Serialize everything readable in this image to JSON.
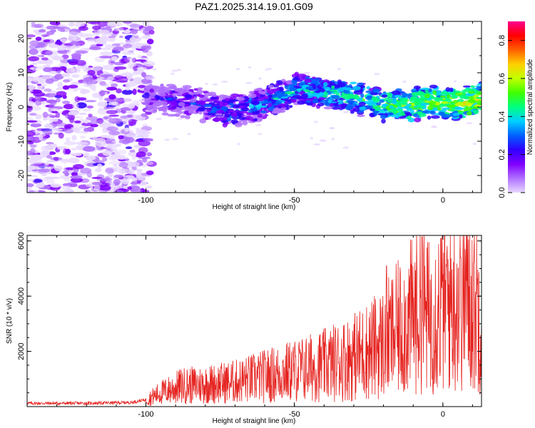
{
  "chart_data": [
    {
      "type": "heatmap",
      "title": "PAZ1.2025.314.19.01.G09",
      "xlabel": "Height of straight line (km)",
      "ylabel": "Frequency (Hz)",
      "xlim": [
        -140,
        13
      ],
      "ylim": [
        -25,
        25
      ],
      "xticks": [
        -100,
        -50,
        0
      ],
      "yticks": [
        -20,
        -10,
        0,
        10,
        20
      ],
      "colorbar": {
        "label": "Normalized spectral amplitude",
        "range": [
          0.0,
          0.9
        ],
        "ticks": [
          0.0,
          0.2,
          0.4,
          0.6,
          0.8
        ],
        "colors": [
          "#e8d8ff",
          "#b070ff",
          "#8000ff",
          "#3000ff",
          "#0060ff",
          "#00d0ff",
          "#00ff80",
          "#40ff00",
          "#c0ff00",
          "#ffd000",
          "#ff6000",
          "#ff0000",
          "#ff0090"
        ]
      },
      "ridge": [
        {
          "x": -100,
          "y": 2.5
        },
        {
          "x": -90,
          "y": 2.0
        },
        {
          "x": -80,
          "y": 0.5
        },
        {
          "x": -72,
          "y": -1.5
        },
        {
          "x": -65,
          "y": 0.0
        },
        {
          "x": -55,
          "y": 3.0
        },
        {
          "x": -48,
          "y": 5.5
        },
        {
          "x": -40,
          "y": 4.5
        },
        {
          "x": -30,
          "y": 3.0
        },
        {
          "x": -20,
          "y": 0.5
        },
        {
          "x": -12,
          "y": 0.5
        },
        {
          "x": -5,
          "y": 1.5
        },
        {
          "x": 5,
          "y": 1.0
        },
        {
          "x": 13,
          "y": 2.5
        }
      ]
    },
    {
      "type": "line",
      "xlabel": "Height of straight line (km)",
      "ylabel": "SNR (10 * v/v)",
      "xlim": [
        -140,
        13
      ],
      "ylim": [
        0,
        6200
      ],
      "xticks": [
        -100,
        -50,
        0
      ],
      "yticks": [
        2000,
        4000,
        6000
      ],
      "series": [
        {
          "name": "SNR",
          "color": "#e52420",
          "x": [
            -140,
            -120,
            -105,
            -100,
            -95,
            -88,
            -80,
            -70,
            -60,
            -50,
            -40,
            -30,
            -20,
            -15,
            -10,
            -7,
            -5,
            0,
            5,
            8,
            10,
            13
          ],
          "y": [
            120,
            120,
            150,
            250,
            500,
            750,
            800,
            900,
            1100,
            1300,
            1500,
            1800,
            2300,
            2800,
            3300,
            3600,
            3200,
            3800,
            4000,
            4200,
            3800,
            3600
          ],
          "peaks": [
            {
              "x": -7,
              "y": 6150
            },
            {
              "x": -19,
              "y": 5100
            },
            {
              "x": 6,
              "y": 5400
            }
          ]
        }
      ]
    }
  ]
}
